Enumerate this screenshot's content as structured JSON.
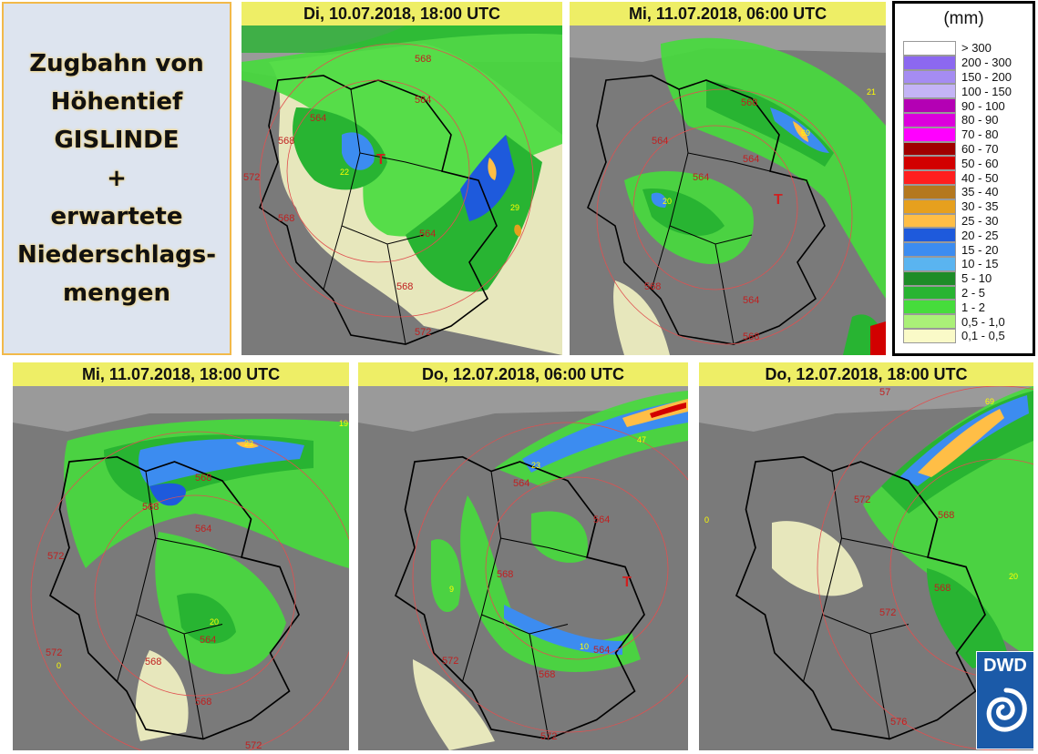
{
  "title": {
    "lines": [
      "Zugbahn von",
      "Höhentief",
      "GISLINDE",
      "+",
      "erwartete",
      "Niederschlags-",
      "mengen"
    ]
  },
  "panels": [
    {
      "header": "Di, 10.07.2018, 18:00 UTC",
      "contours": [
        "568",
        "564",
        "564",
        "568",
        "572",
        "568",
        "564",
        "568",
        "572"
      ],
      "low_marker": "T",
      "values": [
        "22",
        "29"
      ]
    },
    {
      "header": "Mi, 11.07.2018, 06:00 UTC",
      "contours": [
        "568",
        "564",
        "564",
        "564",
        "568",
        "564",
        "568"
      ],
      "low_marker": "T",
      "values": [
        "69",
        "20",
        "21"
      ]
    },
    {
      "header": "Mi, 11.07.2018, 18:00 UTC",
      "contours": [
        "568",
        "568",
        "564",
        "572",
        "572",
        "564",
        "568",
        "568",
        "572"
      ],
      "low_marker": "",
      "values": [
        "23",
        "19",
        "20",
        "0"
      ]
    },
    {
      "header": "Do, 12.07.2018, 06:00 UTC",
      "contours": [
        "564",
        "564",
        "568",
        "564",
        "568",
        "572",
        "572"
      ],
      "low_marker": "T",
      "values": [
        "47",
        "23",
        "9",
        "10"
      ]
    },
    {
      "header": "Do, 12.07.2018, 18:00 UTC",
      "contours": [
        "572",
        "568",
        "568",
        "572",
        "576",
        "57"
      ],
      "low_marker": "",
      "values": [
        "69",
        "20",
        "0"
      ]
    }
  ],
  "legend": {
    "unit": "(mm)",
    "items": [
      {
        "label": "> 300",
        "color": "#ffffff"
      },
      {
        "label": "200 - 300",
        "color": "#8c68f0"
      },
      {
        "label": "150 - 200",
        "color": "#a58cf2"
      },
      {
        "label": "100 - 150",
        "color": "#c4b4f6"
      },
      {
        "label": "90 - 100",
        "color": "#b400b4"
      },
      {
        "label": "80 - 90",
        "color": "#dc00dc"
      },
      {
        "label": "70 - 80",
        "color": "#ff00ff"
      },
      {
        "label": "60 - 70",
        "color": "#a00000"
      },
      {
        "label": "50 - 60",
        "color": "#d20000"
      },
      {
        "label": "40 - 50",
        "color": "#ff1e1e"
      },
      {
        "label": "35 - 40",
        "color": "#b4781e"
      },
      {
        "label": "30 - 35",
        "color": "#e6a01e"
      },
      {
        "label": "25 - 30",
        "color": "#ffbe46"
      },
      {
        "label": "20 - 25",
        "color": "#1e5adc"
      },
      {
        "label": "15 - 20",
        "color": "#3c8cf0"
      },
      {
        "label": "10 - 15",
        "color": "#5ab4f0"
      },
      {
        "label": "5 - 10",
        "color": "#1e8c28"
      },
      {
        "label": "2 - 5",
        "color": "#28b432"
      },
      {
        "label": "1 - 2",
        "color": "#46dc3c"
      },
      {
        "label": "0,5 - 1,0",
        "color": "#aaf078"
      },
      {
        "label": "0,1 - 0,5",
        "color": "#fafac8"
      }
    ]
  },
  "logo": {
    "text": "DWD"
  }
}
